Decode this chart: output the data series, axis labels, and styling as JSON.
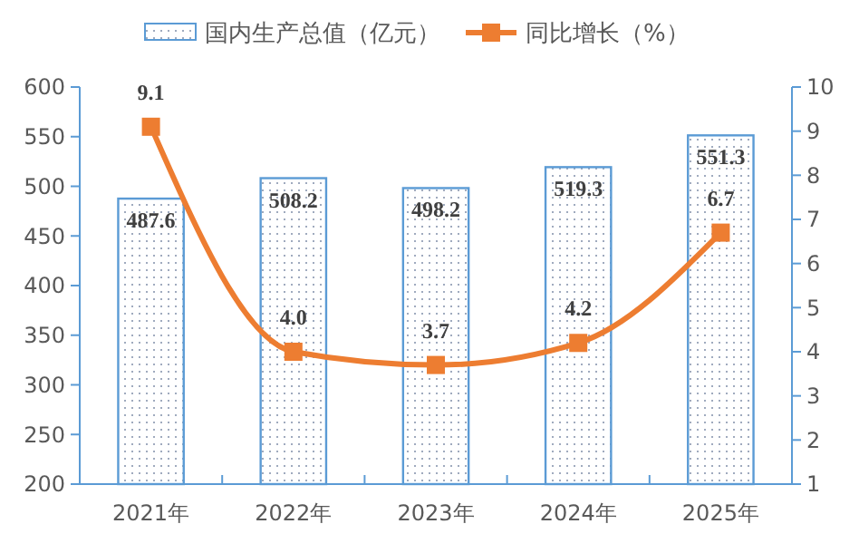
{
  "chart_data": {
    "type": "bar",
    "categories": [
      "2021年",
      "2022年",
      "2023年",
      "2024年",
      "2025年"
    ],
    "series": [
      {
        "name": "国内生产总值（亿元）",
        "color": "#5b9bd5",
        "values": [
          487.6,
          508.2,
          498.2,
          519.3,
          551.3
        ],
        "value_labels": [
          "487.6",
          "508.2",
          "498.2",
          "519.3",
          "551.3"
        ]
      },
      {
        "name": "同比增长（%）",
        "type": "line",
        "axis": "y2",
        "color": "#ed7d31",
        "values": [
          9.1,
          4.0,
          3.7,
          4.2,
          6.7
        ],
        "value_labels": [
          "9.1",
          "4.0",
          "3.7",
          "4.2",
          "6.7"
        ]
      }
    ],
    "ylim": [
      200,
      600
    ],
    "yticks": [
      200,
      250,
      300,
      350,
      400,
      450,
      500,
      550,
      600
    ],
    "y2lim": [
      1,
      10
    ],
    "y2ticks": [
      1,
      2,
      3,
      4,
      5,
      6,
      7,
      8,
      9,
      10
    ],
    "legend": "top",
    "marker": "square",
    "grid": false
  }
}
